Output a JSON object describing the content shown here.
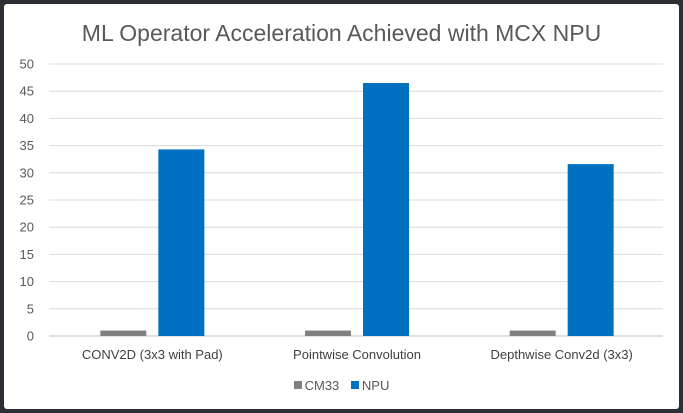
{
  "chart_data": {
    "type": "bar",
    "title": "ML Operator Acceleration Achieved with MCX NPU",
    "categories": [
      "CONV2D (3x3 with Pad)",
      "Pointwise Convolution",
      "Depthwise Conv2d (3x3)"
    ],
    "series": [
      {
        "name": "CM33",
        "values": [
          1,
          1,
          1
        ],
        "color": "#808080"
      },
      {
        "name": "NPU",
        "values": [
          34.3,
          46.5,
          31.6
        ],
        "color": "#0070c0"
      }
    ],
    "ylim": [
      0,
      50
    ],
    "yticks": [
      "0",
      "5",
      "10",
      "15",
      "20",
      "25",
      "30",
      "35",
      "40",
      "45",
      "50"
    ],
    "grid": true,
    "legend_position": "bottom"
  }
}
